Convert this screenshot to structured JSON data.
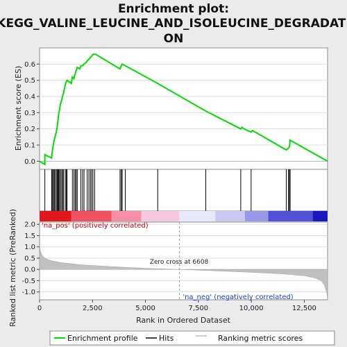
{
  "chart_data": {
    "type": "line",
    "title_lines": [
      "Enrichment plot:",
      "KEGG_VALINE_LEUCINE_AND_ISOLEUCINE_DEGRADATI",
      "ON"
    ],
    "top_panel": {
      "ylabel": "Enrichment score (ES)",
      "ylim": [
        -0.05,
        0.7
      ],
      "yticks": [
        "0.0",
        "0.1",
        "0.2",
        "0.3",
        "0.4",
        "0.5",
        "0.6"
      ],
      "series": [
        {
          "name": "Enrichment profile",
          "color": "#00dd00",
          "x": [
            0,
            250,
            250,
            570,
            600,
            650,
            690,
            730,
            790,
            830,
            870,
            900,
            950,
            980,
            1050,
            1080,
            1130,
            1210,
            1260,
            1300,
            1500,
            1550,
            1620,
            1680,
            1730,
            1780,
            1900,
            1950,
            2030,
            2100,
            2200,
            2250,
            2330,
            2400,
            2460,
            2520,
            2600,
            2650,
            3800,
            3860,
            3900,
            4050,
            5580,
            7850,
            9500,
            9560,
            9650,
            9990,
            10050,
            11650,
            11750,
            11800,
            11830,
            13600
          ],
          "y": [
            0.0,
            -0.02,
            0.04,
            0.02,
            0.06,
            0.1,
            0.13,
            0.15,
            0.18,
            0.21,
            0.25,
            0.29,
            0.32,
            0.35,
            0.38,
            0.4,
            0.42,
            0.47,
            0.49,
            0.5,
            0.48,
            0.52,
            0.51,
            0.54,
            0.56,
            0.58,
            0.57,
            0.59,
            0.59,
            0.6,
            0.61,
            0.62,
            0.63,
            0.64,
            0.65,
            0.66,
            0.66,
            0.66,
            0.57,
            0.59,
            0.6,
            0.59,
            0.48,
            0.31,
            0.2,
            0.21,
            0.2,
            0.18,
            0.19,
            0.07,
            0.08,
            0.09,
            0.13,
            0.0
          ]
        }
      ]
    },
    "hits_panel": {
      "name": "Hits",
      "positions": [
        250,
        570,
        600,
        650,
        690,
        730,
        790,
        830,
        870,
        900,
        950,
        980,
        1050,
        1080,
        1130,
        1210,
        1260,
        1300,
        1550,
        1620,
        1680,
        1730,
        1780,
        1950,
        2030,
        2100,
        2250,
        2330,
        2400,
        2460,
        2520,
        2600,
        3800,
        3860,
        3900,
        4050,
        5580,
        7850,
        9500,
        9990,
        11650,
        11750,
        11800,
        11830
      ]
    },
    "bottom_panel": {
      "ylabel": "Ranked list metric (PreRanked)",
      "xlabel": "Rank in Ordered Dataset",
      "ylim": [
        -1.35,
        2.1
      ],
      "yticks": [
        "2.0",
        "1.5",
        "1.0",
        "0.5",
        "0.0",
        "-0.5",
        "-1.0"
      ],
      "xlim": [
        0,
        13600
      ],
      "xticks": [
        "0",
        "2,500",
        "5,000",
        "7,500",
        "10,000",
        "12,500"
      ],
      "series_name": "Ranking metric scores",
      "metric_profile": {
        "x": [
          0,
          30,
          100,
          250,
          500,
          1000,
          2000,
          3500,
          5000,
          6608,
          8000,
          10000,
          11500,
          12500,
          13000,
          13300,
          13450,
          13550,
          13600
        ],
        "y": [
          1.05,
          0.85,
          0.65,
          0.5,
          0.4,
          0.3,
          0.2,
          0.12,
          0.05,
          0.0,
          -0.05,
          -0.13,
          -0.2,
          -0.28,
          -0.38,
          -0.5,
          -0.7,
          -1.0,
          -1.3
        ]
      },
      "zero_cross": 6608,
      "zero_cross_label": "Zero cross at 6608",
      "pos_label": "'na_pos' (positively correlated)",
      "neg_label": "'na_neg' (negatively correlated)"
    },
    "colorbar_segments": [
      {
        "end": 1500,
        "color": "#e01818"
      },
      {
        "end": 3400,
        "color": "#f05060"
      },
      {
        "end": 4800,
        "color": "#f58fa8"
      },
      {
        "end": 6600,
        "color": "#f8c8e0"
      },
      {
        "end": 8300,
        "color": "#e8e8fa"
      },
      {
        "end": 9700,
        "color": "#c8c8f2"
      },
      {
        "end": 10800,
        "color": "#9898e8"
      },
      {
        "end": 12900,
        "color": "#5050d8"
      },
      {
        "end": 13600,
        "color": "#1818c0"
      }
    ],
    "legend": [
      {
        "label": "Enrichment profile",
        "color": "#00dd00"
      },
      {
        "label": "Hits",
        "color": "#000000"
      },
      {
        "label": "Ranking metric scores",
        "color": "#bbbbbb"
      }
    ]
  }
}
